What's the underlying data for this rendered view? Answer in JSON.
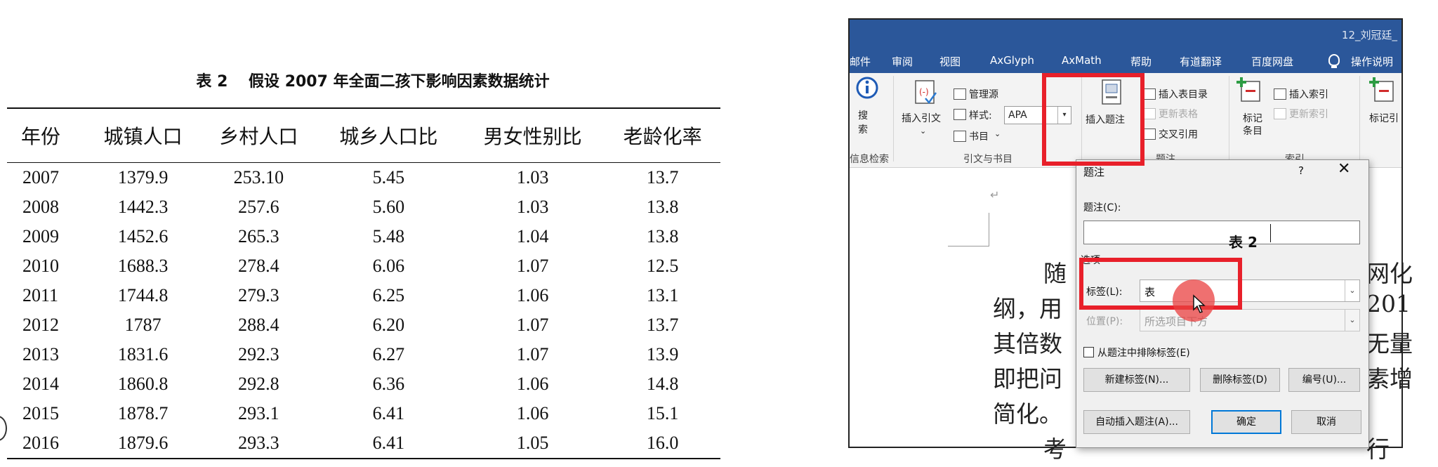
{
  "table": {
    "title": "表 2　 假设 2007 年全面二孩下影响因素数据统计",
    "columns": [
      "年份",
      "城镇人口",
      "乡村人口",
      "城乡人口比",
      "男女性别比",
      "老龄化率"
    ],
    "rows": [
      [
        "2007",
        "1379.9",
        "253.10",
        "5.45",
        "1.03",
        "13.7"
      ],
      [
        "2008",
        "1442.3",
        "257.6",
        "5.60",
        "1.03",
        "13.8"
      ],
      [
        "2009",
        "1452.6",
        "265.3",
        "5.48",
        "1.04",
        "13.8"
      ],
      [
        "2010",
        "1688.3",
        "278.4",
        "6.06",
        "1.07",
        "12.5"
      ],
      [
        "2011",
        "1744.8",
        "279.3",
        "6.25",
        "1.06",
        "13.1"
      ],
      [
        "2012",
        "1787",
        "288.4",
        "6.20",
        "1.07",
        "13.7"
      ],
      [
        "2013",
        "1831.6",
        "292.3",
        "6.27",
        "1.07",
        "13.9"
      ],
      [
        "2014",
        "1860.8",
        "292.8",
        "6.36",
        "1.06",
        "14.8"
      ],
      [
        "2015",
        "1878.7",
        "293.1",
        "6.41",
        "1.06",
        "15.1"
      ],
      [
        "2016",
        "1879.6",
        "293.3",
        "6.41",
        "1.05",
        "16.0"
      ]
    ]
  },
  "word": {
    "doc_title": "12_刘冠廷_",
    "menu": [
      "邮件",
      "审阅",
      "视图",
      "AxGlyph",
      "AxMath",
      "帮助",
      "有道翻译",
      "百度网盘",
      "操作说明"
    ],
    "ribbon": {
      "search_label_1": "搜",
      "search_label_2": "索",
      "search_group": "信息检索",
      "insert_citation": "插入引文",
      "manage_sources": "管理源",
      "style_label": "样式:",
      "style_value": "APA",
      "bibliography": "书目",
      "citations_group": "引文与书目",
      "insert_caption": "插入题注",
      "insert_tof": "插入表目录",
      "update_table": "更新表格",
      "cross_ref": "交叉引用",
      "captions_group": "题注",
      "mark_entry_1": "标记",
      "mark_entry_2": "条目",
      "insert_index": "插入索引",
      "update_index": "更新索引",
      "index_group": "索引",
      "mark_citation": "标记引"
    },
    "document": {
      "line1_left": "随",
      "line1_right": "网化",
      "line2_left": "纲，用",
      "line2_right": "201",
      "line3_left": "其倍数",
      "line3_right": "无量",
      "line4_left": "即把问",
      "line4_right": "素增",
      "line5_left": "简化。",
      "line6_left": "考",
      "line6_right": "行"
    },
    "dialog": {
      "title": "题注",
      "help": "?",
      "close": "✕",
      "caption_label": "题注(C):",
      "caption_value": "表 2",
      "options_label": "选项",
      "label_label": "标签(L):",
      "label_value": "表",
      "position_label": "位置(P):",
      "position_value": "所选项目下方",
      "exclude_label": "从题注中排除标签(E)",
      "new_label_btn": "新建标签(N)...",
      "delete_label_btn": "删除标签(D)",
      "numbering_btn": "编号(U)...",
      "autocaption_btn": "自动插入题注(A)...",
      "ok_btn": "确定",
      "cancel_btn": "取消"
    }
  },
  "colors": {
    "word_blue": "#2b579a",
    "highlight_red": "#e8202a",
    "primary_button_border": "#0078d7"
  }
}
